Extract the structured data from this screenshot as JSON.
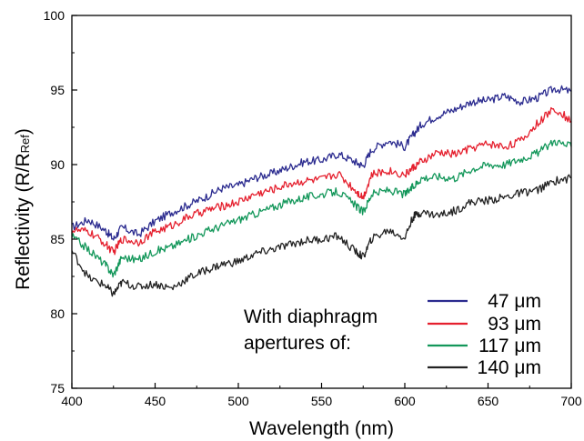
{
  "chart_data": {
    "type": "line",
    "title": "",
    "xlabel": "Wavelength (nm)",
    "ylabel": "Reflectivity (R/R",
    "ylabel_sub": "Ref",
    "ylabel_close": ")",
    "xlim": [
      400,
      700
    ],
    "ylim": [
      75,
      100
    ],
    "xticks": [
      400,
      450,
      500,
      550,
      600,
      650,
      700
    ],
    "yticks": [
      75,
      80,
      85,
      90,
      95,
      100
    ],
    "grid": false,
    "legend_position": "bottom-right",
    "annotation": [
      "With diaphragm",
      "apertures  of:"
    ],
    "x": [
      400,
      410,
      420,
      425,
      430,
      440,
      450,
      460,
      470,
      480,
      490,
      500,
      510,
      520,
      530,
      540,
      550,
      560,
      570,
      575,
      580,
      590,
      600,
      605,
      610,
      620,
      630,
      640,
      650,
      660,
      670,
      680,
      690,
      700
    ],
    "series": [
      {
        "name": "47 μm",
        "color": "#2b2b8f",
        "values": [
          85.8,
          86.3,
          85.6,
          85.0,
          85.8,
          85.3,
          86.2,
          86.8,
          87.3,
          87.8,
          88.4,
          88.6,
          89.1,
          89.4,
          89.8,
          90.2,
          90.3,
          90.7,
          90.2,
          89.9,
          91.0,
          91.6,
          91.2,
          92.0,
          92.7,
          93.3,
          93.7,
          94.2,
          94.3,
          94.6,
          94.2,
          94.5,
          95.1,
          94.9
        ]
      },
      {
        "name": "93 μm",
        "color": "#e5202e",
        "values": [
          85.6,
          85.5,
          84.7,
          84.1,
          85.0,
          84.8,
          85.5,
          85.9,
          86.5,
          86.9,
          87.2,
          87.5,
          88.0,
          88.3,
          88.7,
          88.9,
          89.0,
          89.4,
          88.3,
          87.8,
          89.3,
          89.6,
          89.3,
          89.8,
          90.2,
          90.8,
          90.7,
          91.1,
          91.4,
          91.2,
          91.6,
          92.8,
          93.8,
          92.9
        ]
      },
      {
        "name": "117 μm",
        "color": "#13975a",
        "values": [
          85.2,
          84.3,
          83.3,
          82.6,
          83.8,
          83.6,
          84.2,
          84.5,
          85.0,
          85.5,
          85.9,
          86.3,
          86.7,
          87.1,
          87.5,
          87.8,
          88.0,
          88.2,
          87.3,
          86.8,
          88.0,
          88.3,
          88.0,
          88.5,
          89.1,
          89.2,
          89.1,
          89.7,
          90.0,
          90.0,
          90.4,
          90.8,
          91.6,
          91.2
        ]
      },
      {
        "name": "140 μm",
        "color": "#222222",
        "values": [
          84.2,
          82.4,
          81.9,
          81.3,
          82.1,
          81.8,
          82.0,
          81.7,
          82.4,
          82.9,
          83.3,
          83.5,
          84.0,
          84.3,
          84.6,
          84.9,
          85.0,
          85.2,
          84.2,
          83.8,
          85.0,
          85.6,
          85.1,
          86.5,
          86.8,
          86.6,
          86.9,
          87.5,
          87.6,
          87.8,
          88.1,
          88.3,
          88.9,
          89.1
        ]
      }
    ]
  }
}
